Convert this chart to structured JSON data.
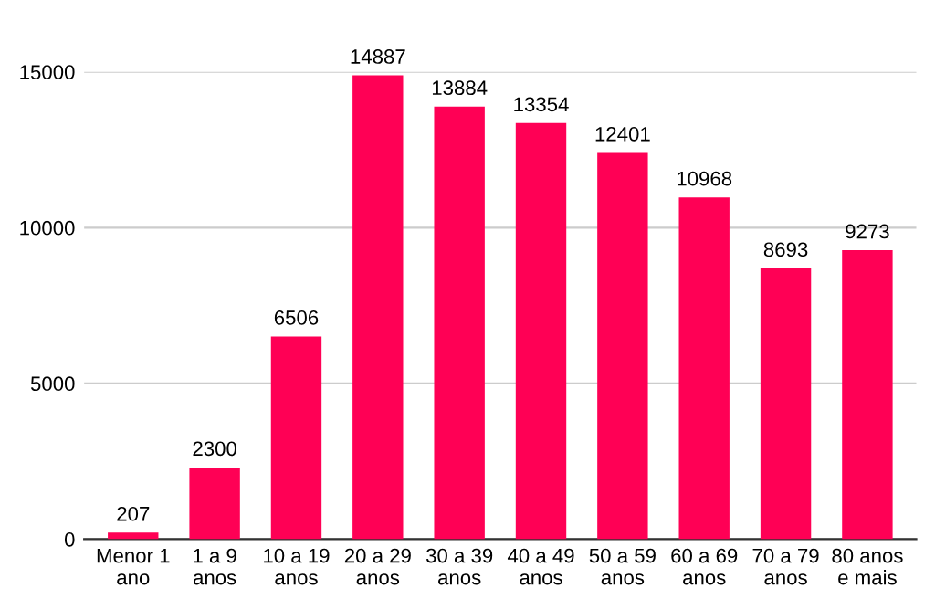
{
  "chart_data": {
    "type": "bar",
    "categories": [
      "Menor 1\nano",
      "1 a 9\nanos",
      "10 a 19\nanos",
      "20 a 29\nanos",
      "30 a 39\nanos",
      "40 a 49\nanos",
      "50 a 59\nanos",
      "60 a 69\nanos",
      "70 a 79\nanos",
      "80 anos\ne mais"
    ],
    "values": [
      207,
      2300,
      6506,
      14887,
      13884,
      13354,
      12401,
      10968,
      8693,
      9273
    ],
    "color": "#ff0055",
    "ylim": [
      0,
      15000
    ],
    "yticks": [
      0,
      5000,
      10000,
      15000
    ],
    "grid": "y",
    "data_labels": true
  }
}
